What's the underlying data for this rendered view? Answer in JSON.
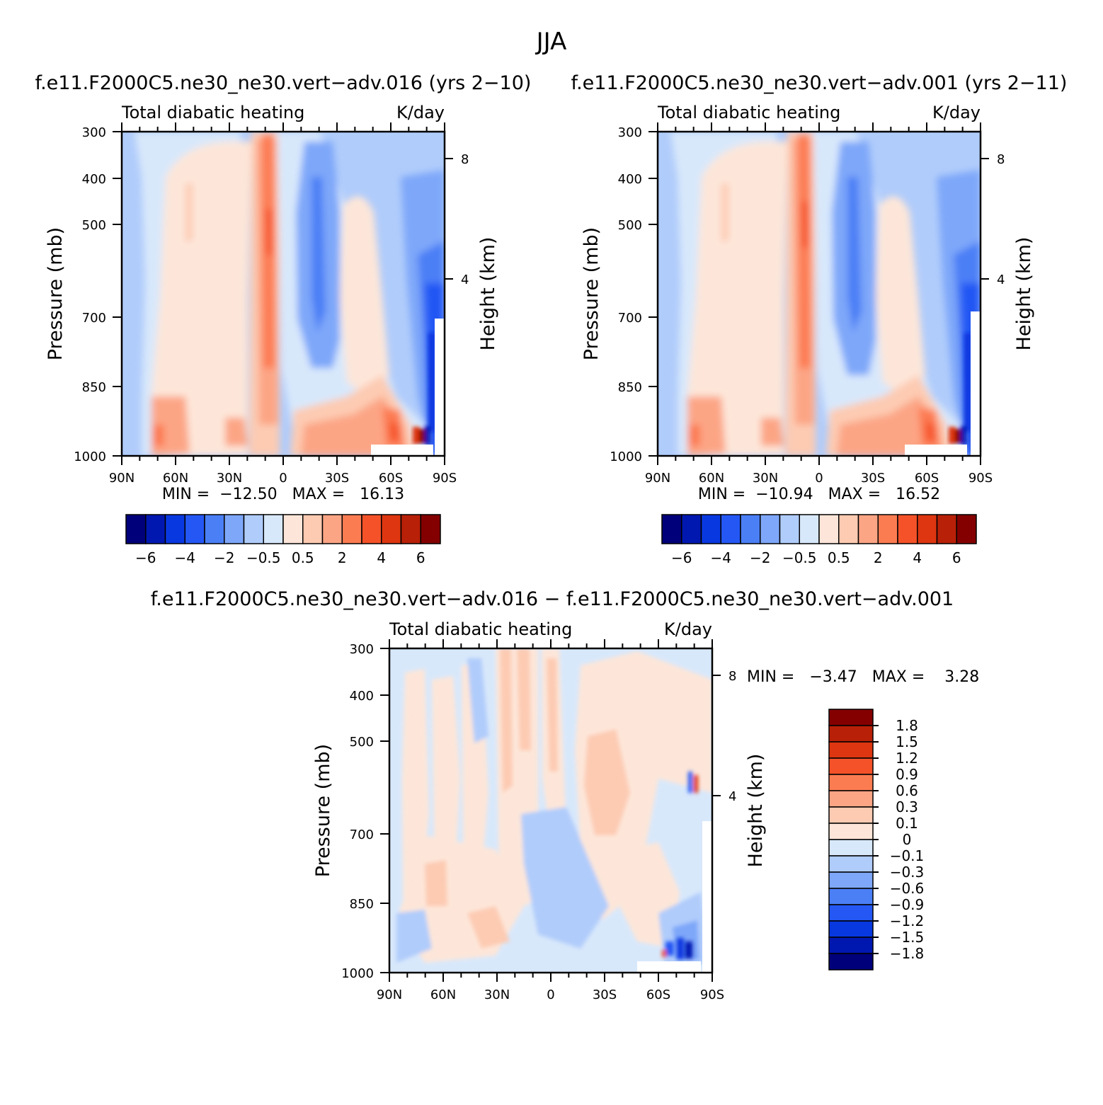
{
  "figure": {
    "title": "JJA",
    "lat_ticks": [
      "90N",
      "60N",
      "30N",
      "0",
      "30S",
      "60S",
      "90S"
    ],
    "pressure_ticks": [
      "300",
      "400",
      "500",
      "700",
      "850",
      "1000"
    ],
    "height_ticks": [
      "8",
      "4"
    ]
  },
  "main_legend": {
    "labels": [
      "-6",
      "-4",
      "-2",
      "-0.5",
      "0.5",
      "2",
      "4",
      "6"
    ],
    "colors": [
      "#00007a",
      "#0018b0",
      "#0838e0",
      "#2457f4",
      "#4b7ff6",
      "#7ea7f9",
      "#b0ccfb",
      "#d8e8fb",
      "#fde6d9",
      "#fdcbb2",
      "#fca585",
      "#fc7c52",
      "#f55229",
      "#de3610",
      "#b82008",
      "#840000"
    ]
  },
  "diff_legend": {
    "labels": [
      "1.8",
      "1.5",
      "1.2",
      "0.9",
      "0.6",
      "0.3",
      "0.1",
      "0",
      "-0.1",
      "-0.3",
      "-0.6",
      "-0.9",
      "-1.2",
      "-1.5",
      "-1.8"
    ],
    "colors": [
      "#840000",
      "#b82008",
      "#de3610",
      "#f55229",
      "#fc7c52",
      "#fca585",
      "#fdcbb2",
      "#fde6d9",
      "#d8e8fb",
      "#b0ccfb",
      "#7ea7f9",
      "#4b7ff6",
      "#2457f4",
      "#0838e0",
      "#0018b0",
      "#00007a"
    ]
  },
  "chart_data": [
    {
      "type": "heatmap",
      "title": "f.e11.F2000C5.ne30_ne30.vert-adv.016 (yrs 2-10)",
      "left_string": "Total diabatic heating",
      "right_string": "K/day",
      "xlabel": "",
      "ylabel": "Pressure (mb)",
      "ylabel_right": "Height (km)",
      "x_categories": [
        "90N",
        "60N",
        "30N",
        "0",
        "30S",
        "60S",
        "90S"
      ],
      "y_categories": [
        "300",
        "400",
        "500",
        "700",
        "850",
        "1000"
      ],
      "stats_text": "MIN =  -12.50   MAX =   16.13",
      "min": -12.5,
      "max": 16.13
    },
    {
      "type": "heatmap",
      "title": "f.e11.F2000C5.ne30_ne30.vert-adv.001 (yrs 2-11)",
      "left_string": "Total diabatic heating",
      "right_string": "K/day",
      "xlabel": "",
      "ylabel": "Pressure (mb)",
      "ylabel_right": "Height (km)",
      "x_categories": [
        "90N",
        "60N",
        "30N",
        "0",
        "30S",
        "60S",
        "90S"
      ],
      "y_categories": [
        "300",
        "400",
        "500",
        "700",
        "850",
        "1000"
      ],
      "stats_text": "MIN =  -10.94   MAX =   16.52",
      "min": -10.94,
      "max": 16.52
    },
    {
      "type": "heatmap",
      "title": "f.e11.F2000C5.ne30_ne30.vert-adv.016 - f.e11.F2000C5.ne30_ne30.vert-adv.001",
      "left_string": "Total diabatic heating",
      "right_string": "K/day",
      "xlabel": "",
      "ylabel": "Pressure (mb)",
      "ylabel_right": "Height (km)",
      "x_categories": [
        "90N",
        "60N",
        "30N",
        "0",
        "30S",
        "60S",
        "90S"
      ],
      "y_categories": [
        "300",
        "400",
        "500",
        "700",
        "850",
        "1000"
      ],
      "stats_text": "MIN =   -3.47   MAX =    3.28",
      "min": -3.47,
      "max": 3.28
    }
  ]
}
